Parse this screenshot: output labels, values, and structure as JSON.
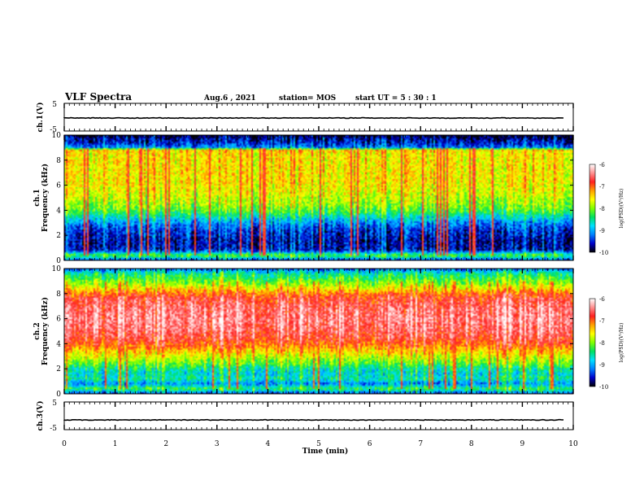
{
  "header": {
    "title": "VLF Spectra",
    "date": "Aug.6 , 2021",
    "station": "station= MOS",
    "start": "start UT = 5 : 30 : 1"
  },
  "colors": {
    "spectrum_stops": [
      "#000000",
      "#0000cc",
      "#0080ff",
      "#00e0ff",
      "#00e060",
      "#80ff00",
      "#ffff00",
      "#ffa000",
      "#ff2020",
      "#ff9090",
      "#ffffff"
    ],
    "trace": "#000000"
  },
  "chart_data": [
    {
      "type": "line",
      "name": "ch1-voltage",
      "ylabel": "ch.1(V)",
      "ylim": [
        -5,
        5
      ],
      "yticks": [
        "5",
        "-5"
      ],
      "x": [
        0,
        10
      ],
      "values": [
        -0.3,
        -0.3
      ]
    },
    {
      "type": "heatmap",
      "name": "ch1-spectrogram",
      "ylabel": "ch.1\nFrequency (kHz)",
      "ylabel_lines": [
        "ch.1",
        "Frequency (kHz)"
      ],
      "ylim": [
        0,
        10
      ],
      "yticks": [
        "0",
        "2",
        "4",
        "6",
        "8",
        "10"
      ],
      "xlim": [
        0,
        10
      ],
      "colorbar": {
        "label": "log(PSD)(V²/Hz)",
        "range": [
          -10,
          -6
        ],
        "ticks": [
          "-6",
          "-7",
          "-8",
          "-9",
          "-10"
        ]
      },
      "profile_freq_khz": [
        0,
        0.4,
        0.8,
        1.2,
        1.6,
        2.0,
        2.4,
        2.8,
        3.2,
        3.6,
        4.0,
        4.8,
        5.6,
        6.4,
        7.2,
        8.0,
        8.6,
        8.8,
        9.0,
        9.4,
        9.8,
        10.0
      ],
      "profile_log_psd": [
        -9.5,
        -8.2,
        -9.6,
        -9.7,
        -9.7,
        -9.6,
        -9.5,
        -9.3,
        -9.0,
        -8.6,
        -8.2,
        -7.9,
        -7.7,
        -7.6,
        -7.6,
        -7.6,
        -7.6,
        -7.4,
        -9.2,
        -9.6,
        -9.8,
        -10.0
      ],
      "burst_log_psd": -6.8
    },
    {
      "type": "heatmap",
      "name": "ch2-spectrogram",
      "ylabel": "ch.2\nFrequency (kHz)",
      "ylabel_lines": [
        "ch.2",
        "Frequency (kHz)"
      ],
      "ylim": [
        0,
        10
      ],
      "yticks": [
        "0",
        "2",
        "4",
        "6",
        "8",
        "10"
      ],
      "xlim": [
        0,
        10
      ],
      "colorbar": {
        "label": "log(PSD)(V²/Hz)",
        "range": [
          -10,
          -6
        ],
        "ticks": [
          "-6",
          "-7",
          "-8",
          "-9",
          "-10"
        ]
      },
      "profile_freq_khz": [
        0,
        0.4,
        0.8,
        1.2,
        1.6,
        2.0,
        2.4,
        2.8,
        3.2,
        3.6,
        4.0,
        4.4,
        5.2,
        6.0,
        6.8,
        7.6,
        8.0,
        8.4,
        8.8,
        9.2,
        9.6,
        10.0
      ],
      "profile_log_psd": [
        -9.5,
        -8.3,
        -9.2,
        -8.6,
        -8.8,
        -8.6,
        -8.2,
        -7.9,
        -7.6,
        -7.3,
        -7.0,
        -6.8,
        -6.6,
        -6.5,
        -6.6,
        -6.8,
        -7.1,
        -7.6,
        -8.0,
        -8.3,
        -8.6,
        -9.4
      ],
      "burst_log_psd": -7.0
    },
    {
      "type": "line",
      "name": "ch3-voltage",
      "ylabel": "ch.3(V)",
      "ylim": [
        -5,
        5
      ],
      "yticks": [
        "5",
        "-5"
      ],
      "x": [
        0,
        10
      ],
      "values": [
        -1.5,
        -1.5
      ]
    }
  ],
  "xaxis": {
    "label": "Time (min)",
    "xlim": [
      0,
      10
    ],
    "ticks": [
      "0",
      "1",
      "2",
      "3",
      "4",
      "5",
      "6",
      "7",
      "8",
      "9",
      "10"
    ]
  }
}
